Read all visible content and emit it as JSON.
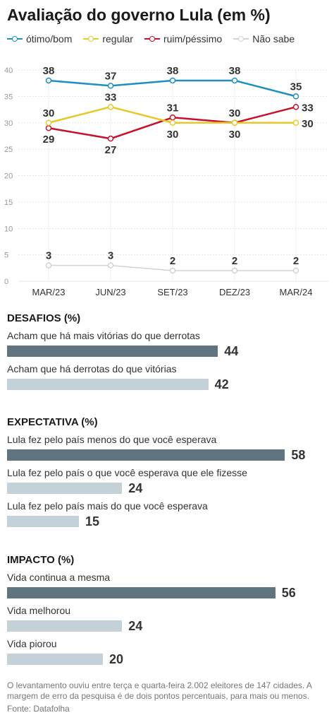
{
  "title": "Avaliação do governo Lula (em %)",
  "chart_data": {
    "type": "line",
    "categories": [
      "MAR/23",
      "JUN/23",
      "SET/23",
      "DEZ/23",
      "MAR/24"
    ],
    "ylim": [
      0,
      40
    ],
    "yticks": [
      0,
      5,
      10,
      15,
      20,
      25,
      30,
      35,
      40
    ],
    "grid": true,
    "legend_position": "top",
    "series": [
      {
        "name": "ótimo/bom",
        "color": "#1e8fc3",
        "values": [
          38,
          37,
          38,
          38,
          35
        ],
        "label_side": [
          "above",
          "above",
          "above",
          "above",
          "above"
        ]
      },
      {
        "name": "regular",
        "color": "#e8c92a",
        "values": [
          30,
          33,
          30,
          30,
          30
        ],
        "label_side": [
          "above",
          "above",
          "below",
          "above",
          "right"
        ]
      },
      {
        "name": "ruim/péssimo",
        "color": "#c8102e",
        "values": [
          29,
          27,
          31,
          30,
          33
        ],
        "label_side": [
          "below",
          "below",
          "above",
          "below",
          "right"
        ]
      },
      {
        "name": "Não sabe",
        "color": "#d3d3d3",
        "values": [
          3,
          3,
          2,
          2,
          2
        ],
        "label_side": [
          "above",
          "above",
          "above",
          "above",
          "above"
        ]
      }
    ]
  },
  "sections": [
    {
      "title": "DESAFIOS (%)",
      "scale_max": 60,
      "items": [
        {
          "label": "Acham que há mais vitórias do que derrotas",
          "value": "44",
          "num": 44,
          "tone": "dark"
        },
        {
          "label": "Acham que há derrotas do que vitórias",
          "value": "42",
          "num": 42,
          "tone": "light"
        }
      ]
    },
    {
      "title": "EXPECTATIVA (%)",
      "scale_max": 60,
      "items": [
        {
          "label": "Lula fez pelo país menos do que você esperava",
          "value": "58",
          "num": 58,
          "tone": "dark"
        },
        {
          "label": "Lula fez pelo país o que você esperava que ele fizesse",
          "value": "24",
          "num": 24,
          "tone": "light"
        },
        {
          "label": "Lula fez pelo país mais do que você esperava",
          "value": "15",
          "num": 15,
          "tone": "light"
        }
      ]
    },
    {
      "title": "IMPACTO (%)",
      "scale_max": 60,
      "items": [
        {
          "label": "Vida continua a mesma",
          "value": "56",
          "num": 56,
          "tone": "dark"
        },
        {
          "label": "Vida melhorou",
          "value": "24",
          "num": 24,
          "tone": "light"
        },
        {
          "label": "Vida piorou",
          "value": "20",
          "num": 20,
          "tone": "light"
        }
      ]
    }
  ],
  "footnote": "O levantamento ouviu entre terça e quarta-feira 2.002 eleitores de 147 cidades. A margem de erro da pesquisa é de dois pontos percentuais, para mais ou menos.",
  "source": "Fonte: Datafolha"
}
